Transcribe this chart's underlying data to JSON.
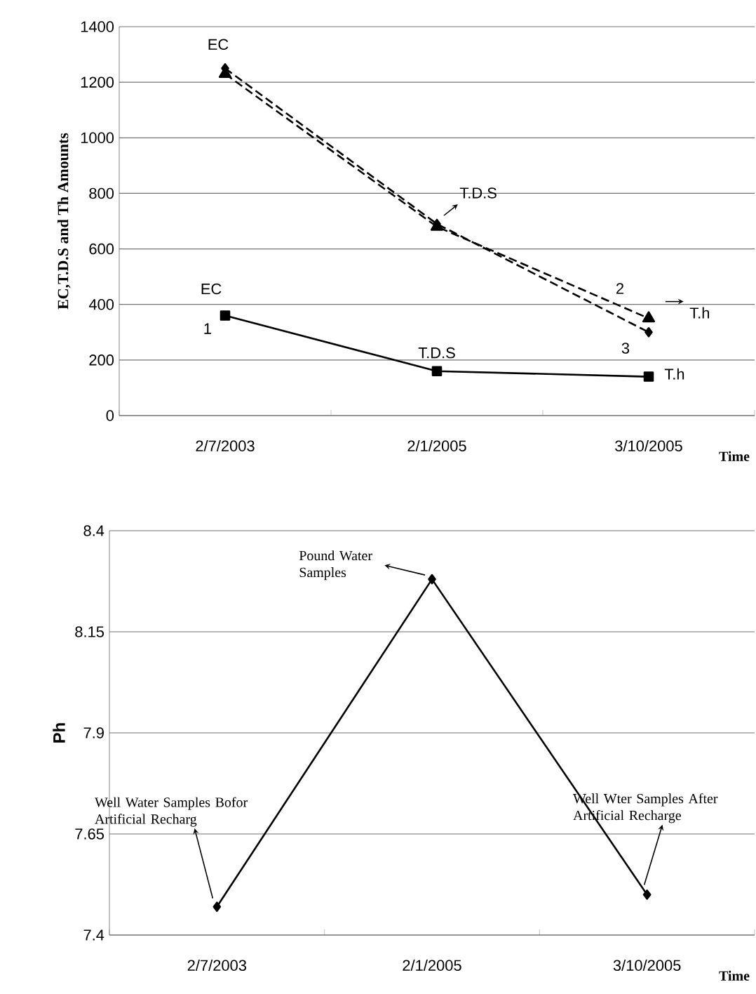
{
  "chart_data": [
    {
      "type": "line",
      "xlabel": "Time",
      "ylabel": "EC,T.D.S and Th Amounts",
      "categories": [
        "2/7/2003",
        "2/1/2005",
        "3/10/2005"
      ],
      "series": [
        {
          "name": "1",
          "color": "#000000",
          "values": [
            360,
            160,
            140
          ],
          "marker": "square",
          "line_style": "solid"
        },
        {
          "name": "2",
          "color": "#000000",
          "values": [
            1230,
            680,
            350
          ],
          "marker": "triangle",
          "line_style": "dashed"
        },
        {
          "name": "3",
          "color": "#000000",
          "values": [
            1250,
            690,
            300
          ],
          "marker": "diamond",
          "line_style": "dashed"
        }
      ],
      "ylim": [
        0,
        1400
      ],
      "yticks": [
        0,
        200,
        400,
        600,
        800,
        1000,
        1200,
        1400
      ],
      "grid": "y",
      "annotations": [
        {
          "text": "EC",
          "x": "2/7/2003",
          "y": 1250
        },
        {
          "text": "T.D.S",
          "x": "2/1/2005",
          "y": 690
        },
        {
          "text": "T.h",
          "x": "3/10/2005",
          "y": 350
        },
        {
          "text": "EC",
          "x": "2/7/2003",
          "y": 360
        },
        {
          "text": "T.D.S",
          "x": "2/1/2005",
          "y": 160
        },
        {
          "text": "T.h",
          "x": "3/10/2005",
          "y": 140
        }
      ]
    },
    {
      "type": "line",
      "xlabel": "Time",
      "ylabel": "Ph",
      "categories": [
        "2/7/2003",
        "2/1/2005",
        "3/10/2005"
      ],
      "values": [
        7.47,
        8.28,
        7.5
      ],
      "color": "#000000",
      "marker": "diamond",
      "line_style": "solid",
      "ylim": [
        7.4,
        8.4
      ],
      "yticks": [
        7.4,
        7.65,
        7.9,
        8.15,
        8.4
      ],
      "grid": "y",
      "annotations": [
        {
          "text": "Well Water Samples Bofor Artificial Recharg",
          "x": "2/7/2003",
          "y": 7.47
        },
        {
          "text": "Pound Water Samples",
          "x": "2/1/2005",
          "y": 8.28
        },
        {
          "text": "Well Wter Samples After Artificial Recharge",
          "x": "3/10/2005",
          "y": 7.5
        }
      ]
    }
  ]
}
